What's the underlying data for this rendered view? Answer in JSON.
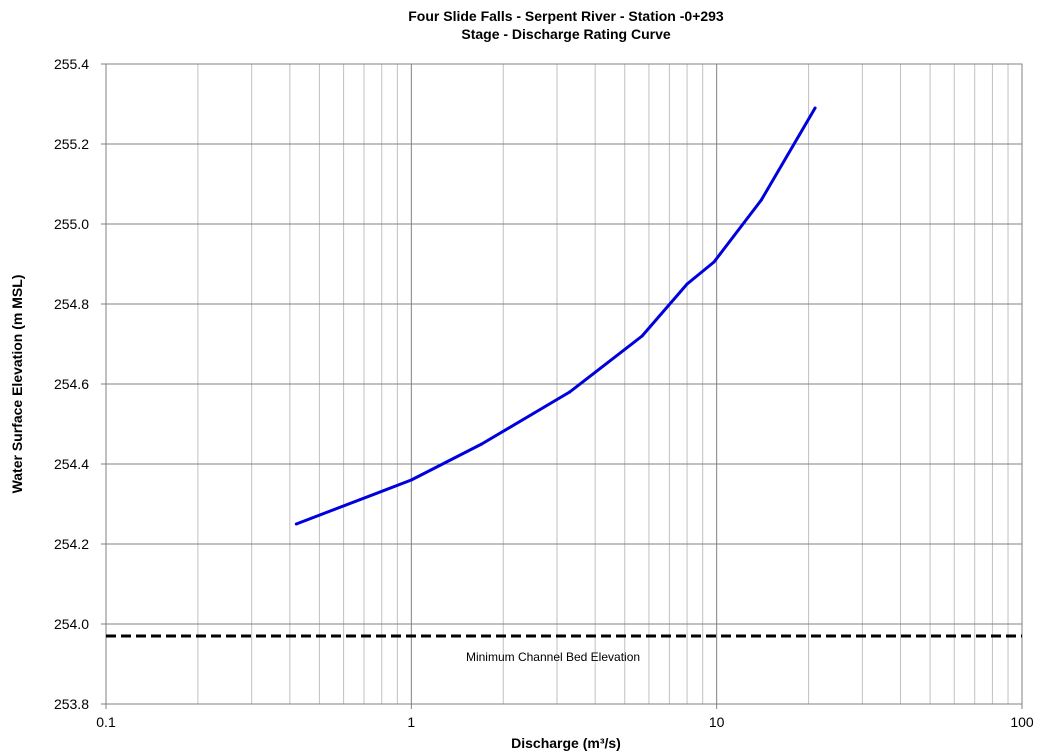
{
  "chart_data": {
    "type": "line",
    "title": "Four Slide Falls - Serpent River - Station -0+293",
    "subtitle": "Stage - Discharge Rating Curve",
    "xlabel": "Discharge (m³/s)",
    "ylabel": "Water Surface Elevation (m MSL)",
    "x_scale": "log",
    "xlim": [
      0.1,
      100
    ],
    "ylim": [
      253.8,
      255.4
    ],
    "x_ticks": [
      0.1,
      1,
      10,
      100
    ],
    "x_tick_labels": [
      "0.1",
      "1",
      "10",
      "100"
    ],
    "y_ticks": [
      253.8,
      254.0,
      254.2,
      254.4,
      254.6,
      254.8,
      255.0,
      255.2,
      255.4
    ],
    "y_tick_labels": [
      "253.8",
      "254.0",
      "254.2",
      "254.4",
      "254.6",
      "254.8",
      "255.0",
      "255.2",
      "255.4"
    ],
    "grid": true,
    "legend": "none",
    "series": [
      {
        "color": "#0000dd",
        "style": "solid",
        "x": [
          0.42,
          1.0,
          1.7,
          3.3,
          5.7,
          8.0,
          9.8,
          14.0,
          21.0
        ],
        "y": [
          254.25,
          254.36,
          254.45,
          254.58,
          254.72,
          254.85,
          254.905,
          255.06,
          255.29
        ]
      }
    ],
    "reference_line": {
      "y": 253.97,
      "color": "#000000",
      "style": "dashed",
      "label": "Minimum Channel Bed Elevation"
    }
  }
}
